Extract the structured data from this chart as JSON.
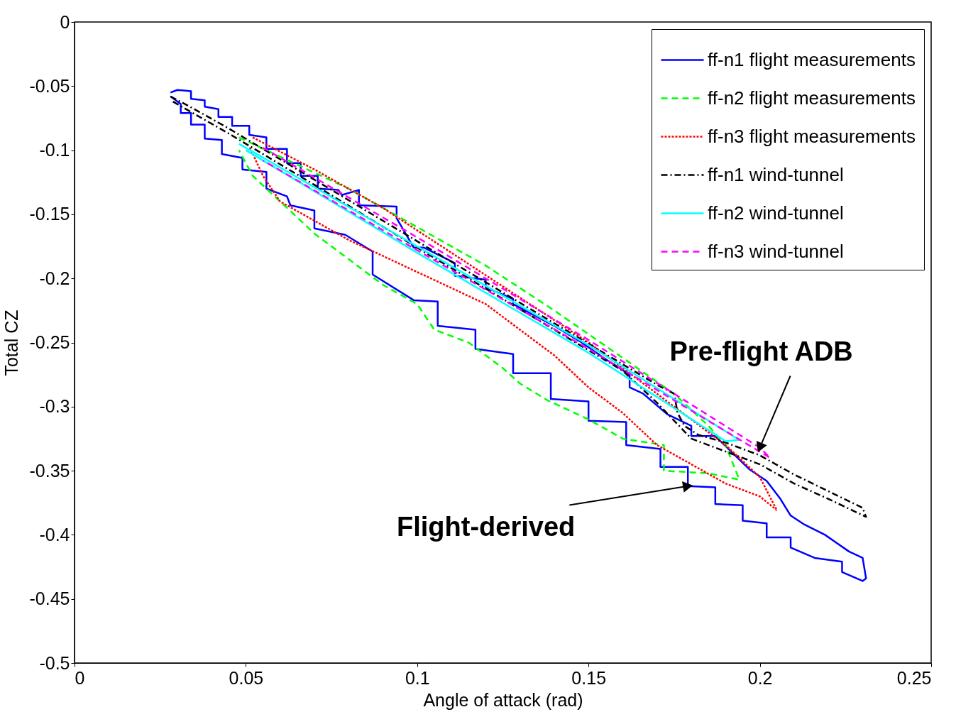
{
  "chart_data": {
    "type": "line",
    "xlabel": "Angle of attack (rad)",
    "ylabel": "Total CZ",
    "xlim": [
      0,
      0.25
    ],
    "xticks": [
      0,
      0.05,
      0.1,
      0.15,
      0.2,
      0.25
    ],
    "ylim": [
      -0.5,
      0
    ],
    "yticks": [
      -0.5,
      -0.45,
      -0.4,
      -0.35,
      -0.3,
      -0.25,
      -0.2,
      -0.15,
      -0.1,
      -0.05,
      0
    ],
    "legend": "top right",
    "series": [
      {
        "name": "ff-n1 flight measurements",
        "color": "#0000ff",
        "line_style": "solid",
        "x": [
          0.028,
          0.03,
          0.034,
          0.034,
          0.038,
          0.038,
          0.042,
          0.042,
          0.046,
          0.046,
          0.051,
          0.051,
          0.056,
          0.056,
          0.062,
          0.062,
          0.066,
          0.066,
          0.071,
          0.071,
          0.077,
          0.078,
          0.083,
          0.083,
          0.094,
          0.094,
          0.099,
          0.102,
          0.111,
          0.111,
          0.12,
          0.12,
          0.128,
          0.128,
          0.14,
          0.148,
          0.155,
          0.162,
          0.162,
          0.166,
          0.173,
          0.18,
          0.18,
          0.187,
          0.192,
          0.197,
          0.202,
          0.206,
          0.209,
          0.213,
          0.219,
          0.226,
          0.23,
          0.231,
          0.23,
          0.224,
          0.224,
          0.216,
          0.209,
          0.209,
          0.202,
          0.202,
          0.195,
          0.195,
          0.187,
          0.187,
          0.179,
          0.179,
          0.171,
          0.171,
          0.161,
          0.161,
          0.15,
          0.15,
          0.139,
          0.139,
          0.128,
          0.128,
          0.117,
          0.117,
          0.106,
          0.106,
          0.099,
          0.087,
          0.087,
          0.079,
          0.07,
          0.07,
          0.063,
          0.062,
          0.056,
          0.056,
          0.049,
          0.049,
          0.043,
          0.043,
          0.038,
          0.038,
          0.034,
          0.034,
          0.031,
          0.031,
          0.028
        ],
        "values": [
          -0.055,
          -0.053,
          -0.054,
          -0.06,
          -0.061,
          -0.066,
          -0.068,
          -0.074,
          -0.074,
          -0.081,
          -0.081,
          -0.088,
          -0.09,
          -0.099,
          -0.099,
          -0.11,
          -0.11,
          -0.12,
          -0.12,
          -0.13,
          -0.131,
          -0.135,
          -0.131,
          -0.143,
          -0.144,
          -0.153,
          -0.176,
          -0.176,
          -0.188,
          -0.198,
          -0.201,
          -0.207,
          -0.216,
          -0.22,
          -0.237,
          -0.25,
          -0.263,
          -0.275,
          -0.285,
          -0.29,
          -0.306,
          -0.315,
          -0.323,
          -0.323,
          -0.336,
          -0.349,
          -0.358,
          -0.372,
          -0.385,
          -0.392,
          -0.4,
          -0.413,
          -0.418,
          -0.434,
          -0.436,
          -0.429,
          -0.421,
          -0.418,
          -0.41,
          -0.402,
          -0.402,
          -0.391,
          -0.389,
          -0.377,
          -0.376,
          -0.363,
          -0.362,
          -0.347,
          -0.347,
          -0.333,
          -0.33,
          -0.312,
          -0.311,
          -0.296,
          -0.294,
          -0.274,
          -0.274,
          -0.259,
          -0.255,
          -0.24,
          -0.237,
          -0.218,
          -0.217,
          -0.197,
          -0.179,
          -0.166,
          -0.161,
          -0.147,
          -0.143,
          -0.136,
          -0.13,
          -0.117,
          -0.115,
          -0.106,
          -0.103,
          -0.092,
          -0.091,
          -0.08,
          -0.08,
          -0.071,
          -0.071,
          -0.064,
          -0.058
        ]
      },
      {
        "name": "ff-n2 flight measurements",
        "color": "#00ff00",
        "line_style": "dashed",
        "x": [
          0.048,
          0.06,
          0.08,
          0.1,
          0.12,
          0.14,
          0.16,
          0.175,
          0.185,
          0.19,
          0.194,
          0.185,
          0.172,
          0.172,
          0.16,
          0.15,
          0.138,
          0.13,
          0.125,
          0.115,
          0.105,
          0.1,
          0.09,
          0.08,
          0.07,
          0.06,
          0.052,
          0.048
        ],
        "values": [
          -0.09,
          -0.105,
          -0.13,
          -0.16,
          -0.19,
          -0.225,
          -0.262,
          -0.29,
          -0.315,
          -0.33,
          -0.357,
          -0.352,
          -0.35,
          -0.33,
          -0.325,
          -0.31,
          -0.295,
          -0.282,
          -0.27,
          -0.25,
          -0.24,
          -0.22,
          -0.205,
          -0.185,
          -0.165,
          -0.14,
          -0.12,
          -0.1
        ]
      },
      {
        "name": "ff-n3 flight measurements",
        "color": "#ff0000",
        "line_style": "dotted",
        "x": [
          0.052,
          0.07,
          0.09,
          0.11,
          0.13,
          0.15,
          0.17,
          0.18,
          0.19,
          0.2,
          0.205,
          0.2,
          0.19,
          0.18,
          0.17,
          0.16,
          0.15,
          0.14,
          0.13,
          0.12,
          0.1,
          0.08,
          0.06,
          0.055,
          0.051
        ],
        "values": [
          -0.09,
          -0.115,
          -0.145,
          -0.18,
          -0.215,
          -0.25,
          -0.29,
          -0.31,
          -0.33,
          -0.355,
          -0.381,
          -0.37,
          -0.36,
          -0.345,
          -0.33,
          -0.305,
          -0.285,
          -0.26,
          -0.24,
          -0.22,
          -0.195,
          -0.17,
          -0.14,
          -0.12,
          -0.097
        ]
      },
      {
        "name": "ff-n1 wind-tunnel",
        "color": "#000000",
        "line_style": "dashdot",
        "x": [
          0.028,
          0.035,
          0.045,
          0.055,
          0.07,
          0.085,
          0.1,
          0.115,
          0.13,
          0.145,
          0.16,
          0.17,
          0.175,
          0.176,
          0.178,
          0.182,
          0.19,
          0.2,
          0.21,
          0.22,
          0.23,
          0.231,
          0.22,
          0.21,
          0.2,
          0.19,
          0.18,
          0.17,
          0.16,
          0.13,
          0.1,
          0.07,
          0.045,
          0.028
        ],
        "values": [
          -0.058,
          -0.068,
          -0.083,
          -0.099,
          -0.123,
          -0.147,
          -0.171,
          -0.195,
          -0.219,
          -0.243,
          -0.267,
          -0.283,
          -0.29,
          -0.305,
          -0.315,
          -0.322,
          -0.328,
          -0.338,
          -0.353,
          -0.366,
          -0.379,
          -0.386,
          -0.372,
          -0.36,
          -0.345,
          -0.335,
          -0.325,
          -0.297,
          -0.272,
          -0.224,
          -0.176,
          -0.127,
          -0.087,
          -0.061
        ]
      },
      {
        "name": "ff-n2 wind-tunnel",
        "color": "#00ffff",
        "line_style": "solid",
        "x": [
          0.048,
          0.1,
          0.15,
          0.194,
          0.19,
          0.15,
          0.1,
          0.05
        ],
        "values": [
          -0.095,
          -0.175,
          -0.252,
          -0.326,
          -0.327,
          -0.258,
          -0.18,
          -0.1
        ]
      },
      {
        "name": "ff-n3 wind-tunnel",
        "color": "#ff00ff",
        "line_style": "dashed",
        "x": [
          0.055,
          0.1,
          0.15,
          0.2,
          0.203,
          0.15,
          0.1,
          0.055
        ],
        "values": [
          -0.098,
          -0.168,
          -0.248,
          -0.332,
          -0.34,
          -0.255,
          -0.178,
          -0.108
        ]
      }
    ],
    "annotations": [
      {
        "text": "Pre-flight ADB",
        "x": 0.2,
        "y": -0.332
      },
      {
        "text": "Flight-derived",
        "x": 0.179,
        "y": -0.362
      }
    ]
  }
}
